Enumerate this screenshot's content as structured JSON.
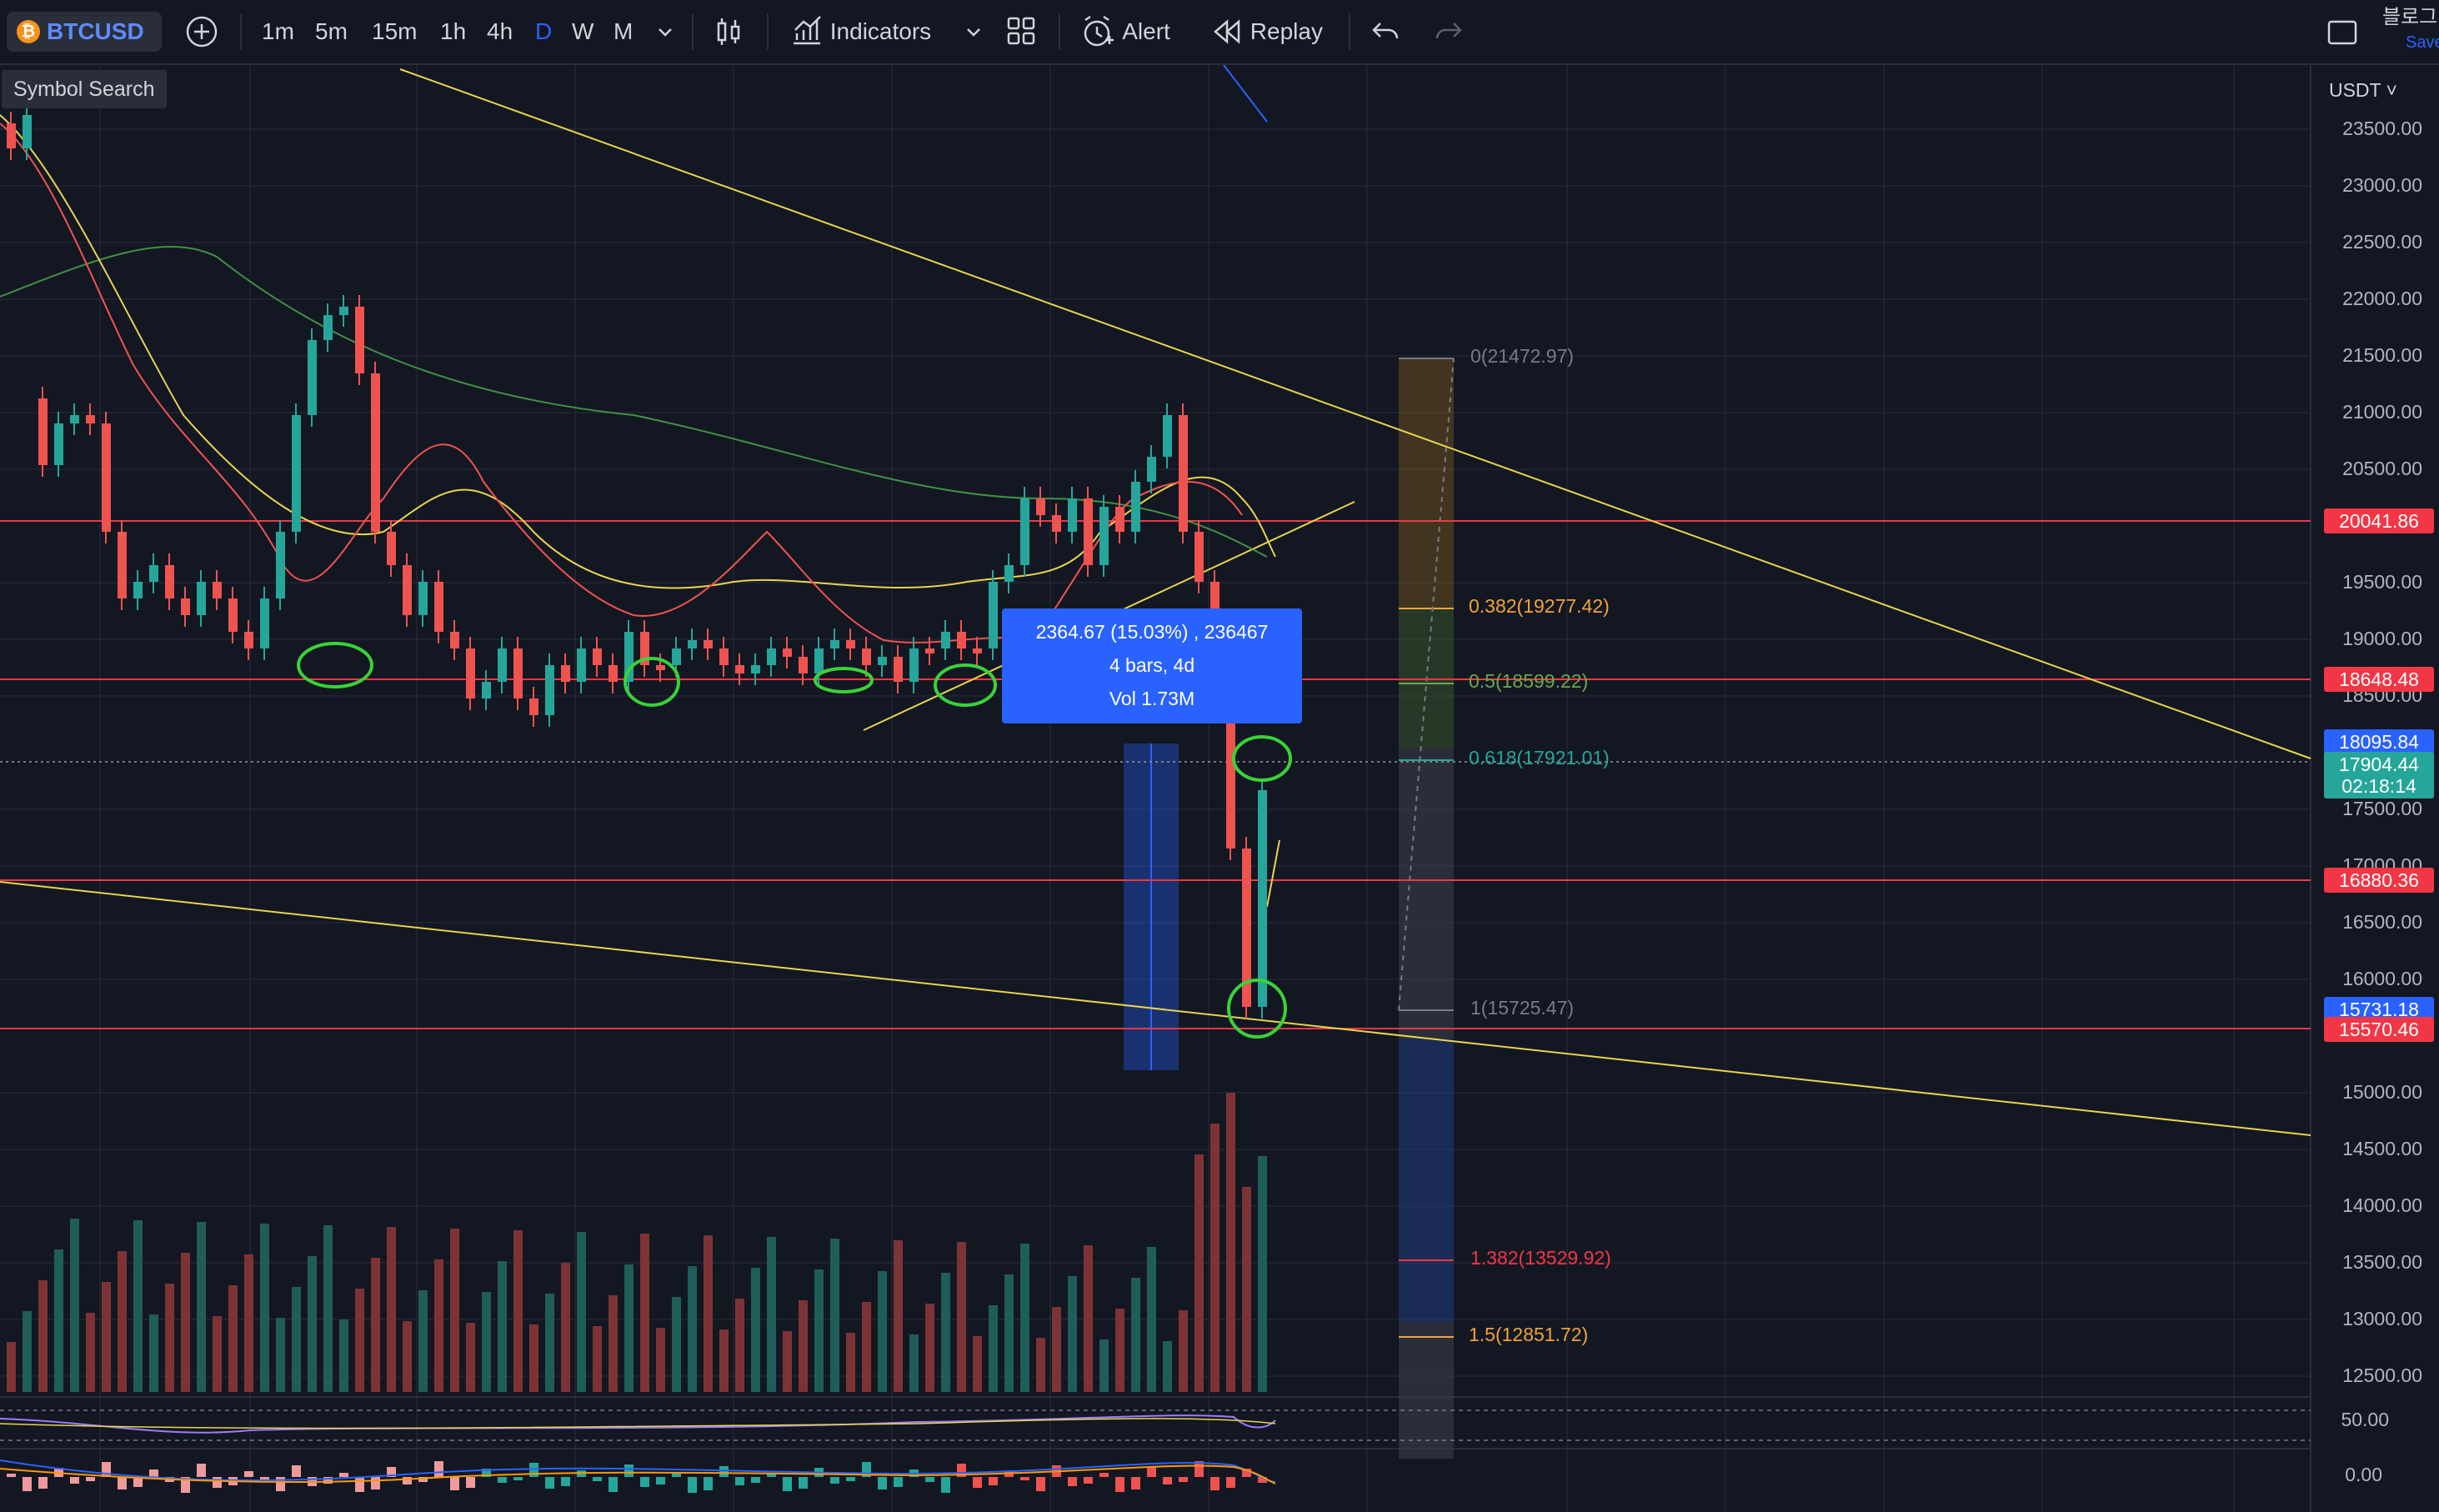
{
  "toolbar": {
    "symbol": "BTCUSD",
    "timeframes": [
      "1m",
      "5m",
      "15m",
      "1h",
      "4h",
      "D",
      "W",
      "M"
    ],
    "active_timeframe": "D",
    "indicators_label": "Indicators",
    "alert_label": "Alert",
    "replay_label": "Replay",
    "right_label": "블로그",
    "save_label": "Save"
  },
  "symbol_search_tooltip": "Symbol Search",
  "price_axis": {
    "currency": "USDT",
    "ticks": [
      "23500.00",
      "23000.00",
      "22500.00",
      "22000.00",
      "21500.00",
      "21000.00",
      "20500.00",
      "19500.00",
      "19000.00",
      "18500.00",
      "17500.00",
      "17000.00",
      "16500.00",
      "16000.00",
      "15000.00",
      "14500.00",
      "14000.00",
      "13500.00",
      "13000.00",
      "12500.00"
    ],
    "badges": [
      {
        "text": "20041.86",
        "color": "#f23645"
      },
      {
        "text": "18648.48",
        "color": "#f23645"
      },
      {
        "text": "18095.84",
        "color": "#2962ff"
      },
      {
        "text": "17904.44",
        "color": "#26a69a"
      },
      {
        "text": "02:18:14",
        "color": "#26a69a"
      },
      {
        "text": "16880.36",
        "color": "#f23645"
      },
      {
        "text": "15731.18",
        "color": "#2962ff"
      },
      {
        "text": "15570.46",
        "color": "#f23645"
      }
    ],
    "rsi_tick": "50.00",
    "macd_tick": "0.00"
  },
  "fib_levels": [
    {
      "label": "0(21472.97)",
      "color": "#787b86"
    },
    {
      "label": "0.382(19277.42)",
      "color": "#f0a33a"
    },
    {
      "label": "0.5(18599.22)",
      "color": "#6aa84f"
    },
    {
      "label": "0.618(17921.01)",
      "color": "#26a69a"
    },
    {
      "label": "1(15725.47)",
      "color": "#787b86"
    },
    {
      "label": "1.382(13529.92)",
      "color": "#f23645"
    },
    {
      "label": "1.5(12851.72)",
      "color": "#f0a33a"
    }
  ],
  "measure_tooltip": {
    "line1": "2364.67 (15.03%) , 236467",
    "line2": "4 bars, 4d",
    "line3": "Vol 1.73M"
  },
  "colors": {
    "up": "#26a69a",
    "down": "#ef5350",
    "accent": "#2962ff",
    "trend": "#e8d44d"
  }
}
